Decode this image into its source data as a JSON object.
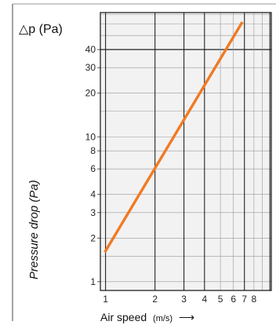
{
  "chart_data": {
    "type": "line",
    "title": "",
    "unit_label": "△p (Pa)",
    "ylabel": "Pressure drop (Pa)",
    "xlabel_main": "Air speed",
    "xlabel_unit": "(m/s)",
    "xlabel_arrow": "⟶",
    "x_scale": "log",
    "y_scale": "log",
    "xlim": [
      0.93,
      10.2
    ],
    "ylim": [
      0.87,
      72
    ],
    "grid": true,
    "x_ticks": [
      {
        "value": 1,
        "label": "1"
      },
      {
        "value": 2,
        "label": "2"
      },
      {
        "value": 3,
        "label": "3"
      },
      {
        "value": 4,
        "label": "4"
      },
      {
        "value": 5,
        "label": "5"
      },
      {
        "value": 6,
        "label": "6"
      },
      {
        "value": 7,
        "label": "7"
      },
      {
        "value": 8,
        "label": "8"
      }
    ],
    "x_major_grid": [
      1,
      2,
      3,
      4,
      7,
      10
    ],
    "x_minor_grid": [
      5,
      6,
      8,
      9
    ],
    "y_ticks": [
      {
        "value": 1,
        "label": "1"
      },
      {
        "value": 2,
        "label": "2"
      },
      {
        "value": 3,
        "label": "3"
      },
      {
        "value": 4,
        "label": "4"
      },
      {
        "value": 6,
        "label": "6"
      },
      {
        "value": 8,
        "label": "8"
      },
      {
        "value": 10,
        "label": "10"
      },
      {
        "value": 20,
        "label": "20"
      },
      {
        "value": 30,
        "label": "30"
      },
      {
        "value": 40,
        "label": "40"
      }
    ],
    "y_grid": [
      1,
      1.5,
      2,
      3,
      4,
      6,
      8,
      10,
      15,
      20,
      30,
      50,
      60,
      70
    ],
    "y_heavy_grid": [
      40
    ],
    "series": [
      {
        "name": "",
        "color": "#F07A22",
        "x": [
          0.99,
          6.8
        ],
        "y": [
          1.6,
          62
        ]
      }
    ],
    "colors": {
      "grid_major": "#222222",
      "grid_minor": "#999999",
      "plot_background": "#F2F2F2",
      "line": "#F07A22"
    }
  }
}
